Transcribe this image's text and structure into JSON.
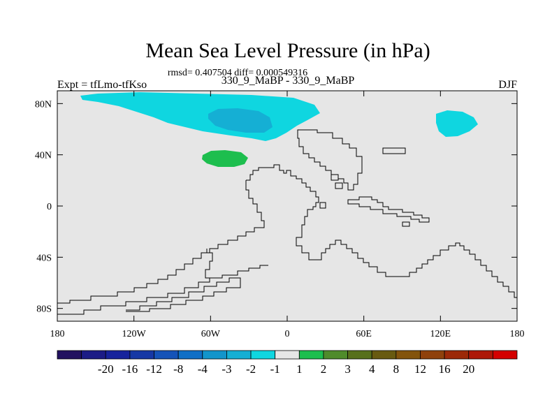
{
  "title": "Mean Sea Level Pressure (in hPa)",
  "stats": "rmsd= 0.407504 diff= 0.000549316",
  "left_label": "Expt = tfLmo-tfKso",
  "center_label": "330_9_MaBP - 330_9_MaBP",
  "season": "DJF",
  "x_axis": {
    "range": [
      -180,
      180
    ],
    "ticks": [
      {
        "value": -180,
        "label": "180"
      },
      {
        "value": -120,
        "label": "120W"
      },
      {
        "value": -60,
        "label": "60W"
      },
      {
        "value": 0,
        "label": "0"
      },
      {
        "value": 60,
        "label": "60E"
      },
      {
        "value": 120,
        "label": "120E"
      },
      {
        "value": 180,
        "label": "180"
      }
    ]
  },
  "y_axis": {
    "range": [
      -90,
      90
    ],
    "ticks": [
      {
        "value": 80,
        "label": "80N"
      },
      {
        "value": 40,
        "label": "40N"
      },
      {
        "value": 0,
        "label": "0"
      },
      {
        "value": -40,
        "label": "40S"
      },
      {
        "value": -80,
        "label": "80S"
      }
    ]
  },
  "colors": {
    "background": "#e6e6e6",
    "coastline": "#000000"
  },
  "colorbar": {
    "colors": [
      "#221160",
      "#1c1c86",
      "#17239c",
      "#1638a5",
      "#1553b8",
      "#0f6fc6",
      "#1295cb",
      "#15afd4",
      "#0fd6e0",
      "#e6e6e6",
      "#1dbe4e",
      "#4f8b2b",
      "#57701b",
      "#685a10",
      "#83540c",
      "#8f410c",
      "#9c2908",
      "#ad1808",
      "#d40000"
    ],
    "labels": [
      "-20",
      "-16",
      "-12",
      "-8",
      "-4",
      "-3",
      "-2",
      "-1",
      "1",
      "2",
      "3",
      "4",
      "8",
      "12",
      "16",
      "20"
    ]
  },
  "anomalies": [
    {
      "level": "-1",
      "color": "#0fd6e0",
      "region": "Arctic north of North America / Greenland"
    },
    {
      "level": "-2",
      "color": "#15afd4",
      "region": "Greenland core"
    },
    {
      "level": "-1",
      "color": "#0fd6e0",
      "region": "Northeast Siberia"
    },
    {
      "level": "1",
      "color": "#1dbe4e",
      "region": "North Atlantic"
    }
  ]
}
